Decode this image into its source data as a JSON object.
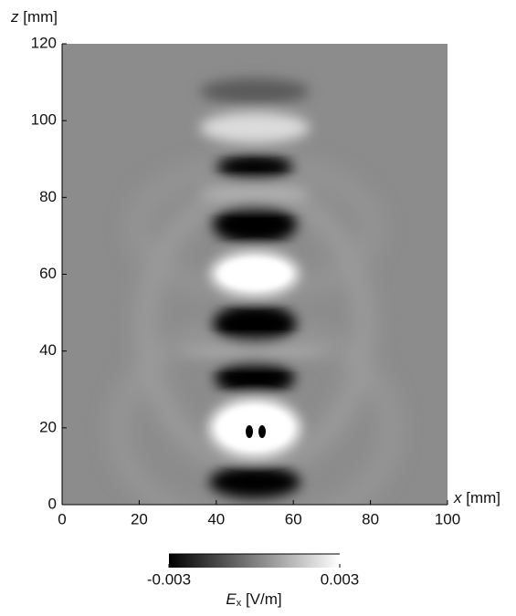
{
  "chart_data": {
    "type": "heatmap",
    "xlabel": {
      "var": "x",
      "unit": "[mm]"
    },
    "ylabel": {
      "var": "z",
      "unit": "[mm]"
    },
    "xlim": [
      0,
      100
    ],
    "xticks": [
      0,
      20,
      40,
      60,
      80,
      100
    ],
    "ylim": [
      0,
      120
    ],
    "yticks": [
      0,
      20,
      40,
      60,
      80,
      100,
      120
    ],
    "colorbar": {
      "lim": [
        -0.003,
        0.003
      ],
      "ticks": [
        -0.003,
        0.003
      ],
      "label": {
        "var": "E",
        "sub": "x",
        "unit": "[V/m]"
      },
      "colors": [
        "#000000",
        "#ffffff"
      ]
    }
  }
}
